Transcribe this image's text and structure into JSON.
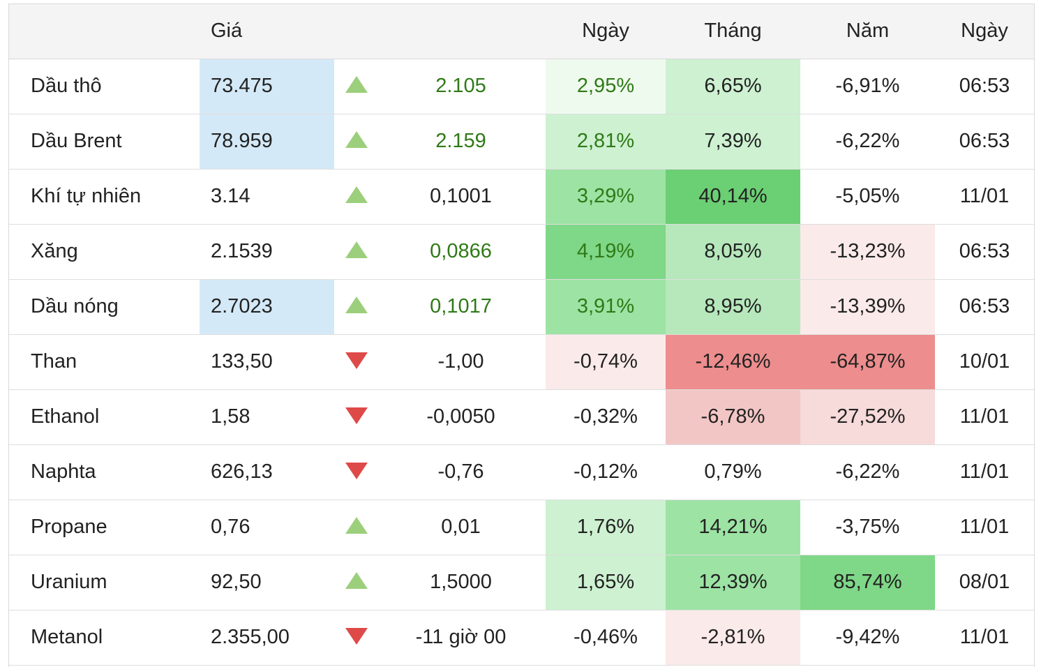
{
  "header": {
    "name": "",
    "price": "Giá",
    "arrow": "",
    "change": "",
    "day": "Ngày",
    "month": "Tháng",
    "year": "Năm",
    "time": "Ngày"
  },
  "colors": {
    "up_arrow": "#9ccf7b",
    "down_arrow": "#de4a48",
    "positive_text": "#2f7a16",
    "highlight_blue": "#d4e9f7"
  },
  "rows": [
    {
      "name": "Dầu thô",
      "price": "73.475",
      "direction": "up",
      "change": "2.105",
      "day": "2,95%",
      "month": "6,65%",
      "year": "-6,91%",
      "time": "06:53",
      "price_highlight": true,
      "change_green": true,
      "day_shade": "g1",
      "month_shade": "g2",
      "year_shade": "none"
    },
    {
      "name": "Dầu Brent",
      "price": "78.959",
      "direction": "up",
      "change": "2.159",
      "day": "2,81%",
      "month": "7,39%",
      "year": "-6,22%",
      "time": "06:53",
      "price_highlight": true,
      "change_green": true,
      "day_shade": "g2",
      "month_shade": "g2",
      "year_shade": "none"
    },
    {
      "name": "Khí tự nhiên",
      "price": "3.14",
      "direction": "up",
      "change": "0,1001",
      "day": "3,29%",
      "month": "40,14%",
      "year": "-5,05%",
      "time": "11/01",
      "price_highlight": false,
      "change_green": false,
      "day_shade": "g4",
      "month_shade": "g6",
      "year_shade": "none"
    },
    {
      "name": "Xăng",
      "price": "2.1539",
      "direction": "up",
      "change": "0,0866",
      "day": "4,19%",
      "month": "8,05%",
      "year": "-13,23%",
      "time": "06:53",
      "price_highlight": false,
      "change_green": true,
      "day_shade": "g5",
      "month_shade": "g3",
      "year_shade": "r1"
    },
    {
      "name": "Dầu nóng",
      "price": "2.7023",
      "direction": "up",
      "change": "0,1017",
      "day": "3,91%",
      "month": "8,95%",
      "year": "-13,39%",
      "time": "06:53",
      "price_highlight": true,
      "change_green": true,
      "day_shade": "g4",
      "month_shade": "g3",
      "year_shade": "r1"
    },
    {
      "name": "Than",
      "price": "133,50",
      "direction": "down",
      "change": "-1,00",
      "day": "-0,74%",
      "month": "-12,46%",
      "year": "-64,87%",
      "time": "10/01",
      "price_highlight": false,
      "change_green": false,
      "day_shade": "r1",
      "month_shade": "r4",
      "year_shade": "r4"
    },
    {
      "name": "Ethanol",
      "price": "1,58",
      "direction": "down",
      "change": "-0,0050",
      "day": "-0,32%",
      "month": "-6,78%",
      "year": "-27,52%",
      "time": "11/01",
      "price_highlight": false,
      "change_green": false,
      "day_shade": "none",
      "month_shade": "r3",
      "year_shade": "r2"
    },
    {
      "name": "Naphta",
      "price": "626,13",
      "direction": "down",
      "change": "-0,76",
      "day": "-0,12%",
      "month": "0,79%",
      "year": "-6,22%",
      "time": "11/01",
      "price_highlight": false,
      "change_green": false,
      "day_shade": "none",
      "month_shade": "none",
      "year_shade": "none"
    },
    {
      "name": "Propane",
      "price": "0,76",
      "direction": "up",
      "change": "0,01",
      "day": "1,76%",
      "month": "14,21%",
      "year": "-3,75%",
      "time": "11/01",
      "price_highlight": false,
      "change_green": false,
      "day_shade": "g2",
      "month_shade": "g4",
      "year_shade": "none"
    },
    {
      "name": "Uranium",
      "price": "92,50",
      "direction": "up",
      "change": "1,5000",
      "day": "1,65%",
      "month": "12,39%",
      "year": "85,74%",
      "time": "08/01",
      "price_highlight": false,
      "change_green": false,
      "day_shade": "g2",
      "month_shade": "g4",
      "year_shade": "g5"
    },
    {
      "name": "Metanol",
      "price": "2.355,00",
      "direction": "down",
      "change": "-11 giờ 00",
      "day": "-0,46%",
      "month": "-2,81%",
      "year": "-9,42%",
      "time": "11/01",
      "price_highlight": false,
      "change_green": false,
      "day_shade": "none",
      "month_shade": "r1",
      "year_shade": "none"
    }
  ]
}
